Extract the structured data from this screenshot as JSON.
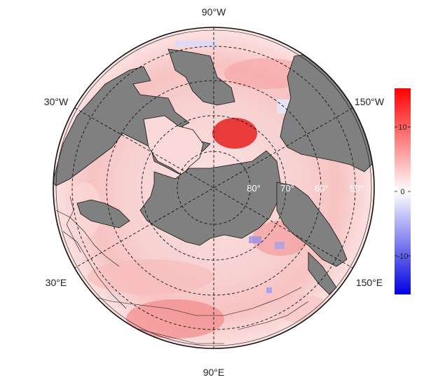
{
  "map": {
    "projection": "north-polar-stereographic",
    "variable_colormap": "blue-white-red diverging",
    "land_color": "#808080",
    "graticule_style": "dashed black",
    "longitude_labels": {
      "top": "90°W",
      "upper_left": "30°W",
      "upper_right": "150°W",
      "lower_left": "30°E",
      "lower_right": "150°E",
      "bottom": "90°E"
    },
    "latitude_labels": [
      "80°",
      "70°",
      "60°",
      "50°"
    ]
  },
  "colorbar": {
    "min": -16,
    "max": 16,
    "ticks": [
      {
        "value": 10,
        "label": "10"
      },
      {
        "value": 0,
        "label": "0"
      },
      {
        "value": -10,
        "label": "-10"
      }
    ],
    "colors": {
      "low": "#0000e0",
      "mid": "#ffffff",
      "high": "#ff0000"
    }
  }
}
